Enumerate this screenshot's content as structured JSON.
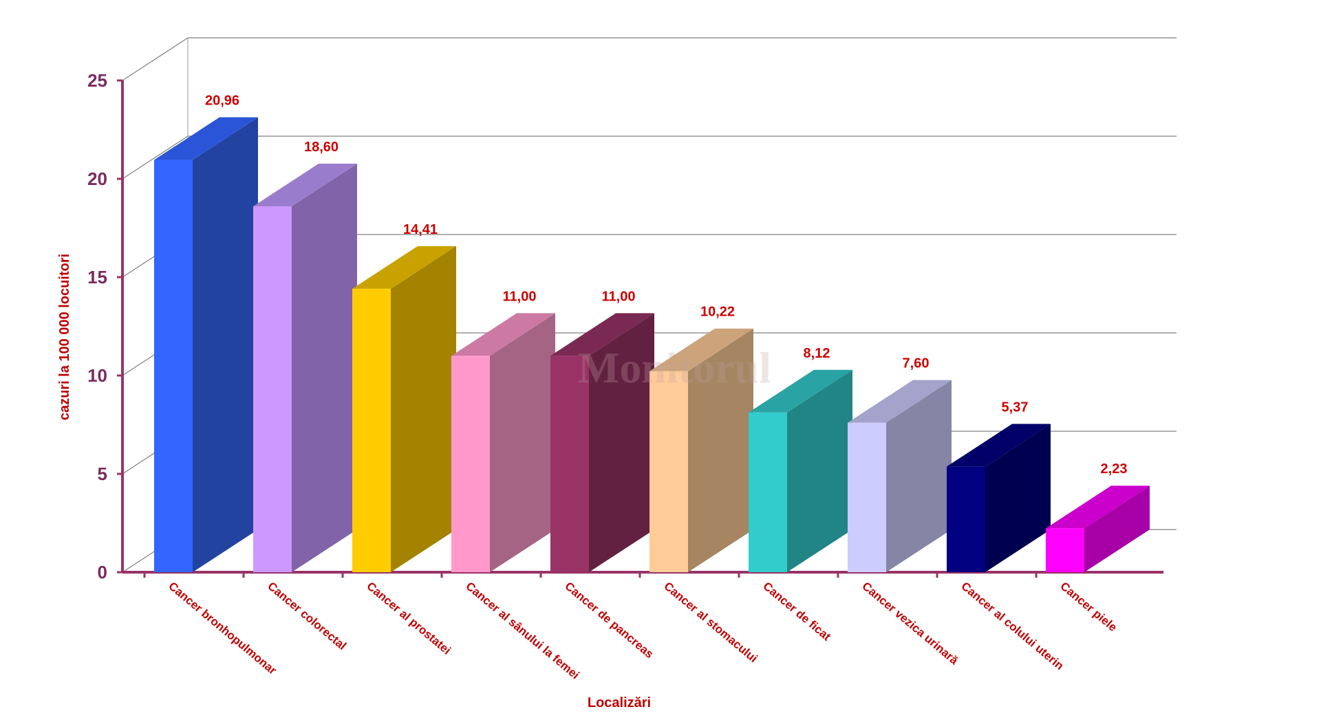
{
  "chart_data": {
    "type": "bar",
    "style": "3d-columns",
    "categories": [
      "Cancer bronhopulmonar",
      "Cancer colorectal",
      "Cancer al prostatei",
      "Cancer al sânului la femei",
      "Cancer de pancreas",
      "Cancer al stomacului",
      "Cancer de ficat",
      "Cancer vezica urinară",
      "Cancer al colului uterin",
      "Cancer piele"
    ],
    "values": [
      20.96,
      18.6,
      14.41,
      11.0,
      11.0,
      10.22,
      8.12,
      7.6,
      5.37,
      2.23
    ],
    "value_labels": [
      "20,96",
      "18,60",
      "14,41",
      "11,00",
      "11,00",
      "10,22",
      "8,12",
      "7,60",
      "5,37",
      "2,23"
    ],
    "bar_colors": [
      {
        "front": "#3366ff",
        "side": "#2244a0",
        "top": "#2a55d8"
      },
      {
        "front": "#cc99ff",
        "side": "#8063a8",
        "top": "#9a7ccc"
      },
      {
        "front": "#ffcc00",
        "side": "#a38300",
        "top": "#c9a200"
      },
      {
        "front": "#ff99cc",
        "side": "#a66485",
        "top": "#cc7aa3"
      },
      {
        "front": "#993366",
        "side": "#632142",
        "top": "#7a2952"
      },
      {
        "front": "#ffcc99",
        "side": "#a68563",
        "top": "#cca37a"
      },
      {
        "front": "#33cccc",
        "side": "#218585",
        "top": "#29a3a3"
      },
      {
        "front": "#ccccff",
        "side": "#8585a6",
        "top": "#a3a3cc"
      },
      {
        "front": "#000080",
        "side": "#000050",
        "top": "#000068"
      },
      {
        "front": "#ff00ff",
        "side": "#a600a6",
        "top": "#cc00cc"
      }
    ],
    "ylabel": "cazuri la 100 000 locuitori",
    "xlabel": "Localizări",
    "ylim": [
      0,
      25
    ],
    "yticks": [
      0,
      5,
      10,
      15,
      20,
      25
    ],
    "grid": true,
    "axis_color": "#993366",
    "label_color": "#cc0000"
  },
  "watermark": "Monitorul"
}
